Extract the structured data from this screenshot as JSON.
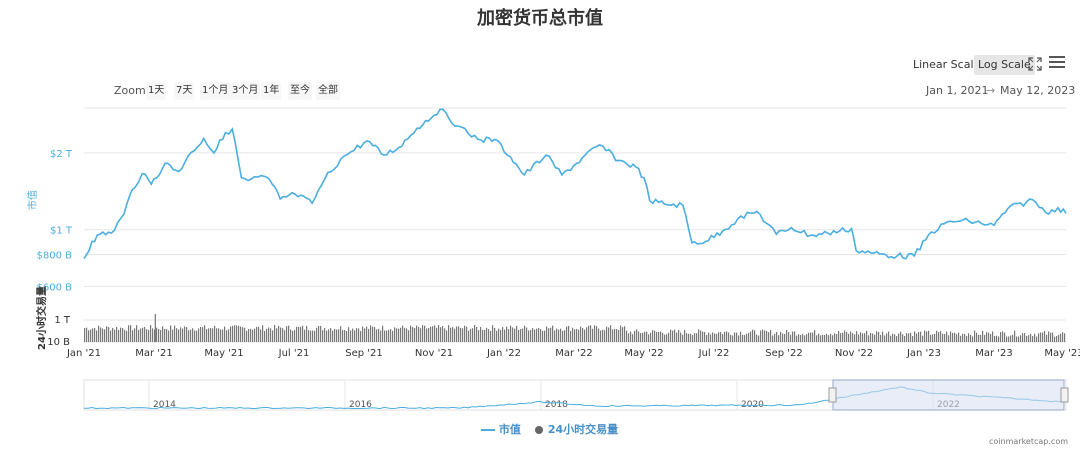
{
  "title": "加密货币总市值",
  "controls": {
    "linear_scale": "Linear Scale",
    "log_scale": "Log Scale",
    "zoom_label": "Zoom",
    "zoom_buttons": [
      "1天",
      "7天",
      "1个月",
      "3个月",
      "1年",
      "至今",
      "全部"
    ],
    "date_from": "Jan 1, 2021",
    "date_sep": "→",
    "date_to": "May 12, 2023",
    "active_scale": "Log Scale"
  },
  "legend": {
    "series_1": "市值",
    "series_2": "24小时交易量"
  },
  "credit": "coinmarketcap.com",
  "colors": {
    "line": "#4aaee0",
    "volume_bar": "#777777",
    "navigator_fill": "#d6def0",
    "grid": "#e6e6e6",
    "axis_label": "#4aaee0"
  },
  "chart_data": {
    "type": "line",
    "title": "加密货币总市值",
    "y_axis": {
      "label": "市值",
      "scale": "log",
      "ticks": [
        "$2 T",
        "$1 T",
        "$800 B",
        "$600 B"
      ],
      "tick_values": [
        2000,
        1000,
        800,
        600
      ],
      "unit": "USD billions",
      "range": [
        550,
        3000
      ]
    },
    "volume_axis": {
      "label": "24小时交易量",
      "ticks": [
        "1 T",
        "10 B"
      ]
    },
    "x_axis": {
      "ticks": [
        "Jan '21",
        "Mar '21",
        "May '21",
        "Jul '21",
        "Sep '21",
        "Nov '21",
        "Jan '22",
        "Mar '22",
        "May '22",
        "Jul '22",
        "Sep '22",
        "Nov '22",
        "Jan '23",
        "Mar '23",
        "May '23"
      ],
      "range": [
        "2021-01-01",
        "2023-05-12"
      ]
    },
    "series": [
      {
        "name": "市值",
        "dates": [
          "2021-01-01",
          "2021-01-08",
          "2021-01-15",
          "2021-01-25",
          "2021-02-05",
          "2021-02-12",
          "2021-02-21",
          "2021-03-01",
          "2021-03-13",
          "2021-03-25",
          "2021-04-05",
          "2021-04-16",
          "2021-04-25",
          "2021-05-05",
          "2021-05-11",
          "2021-05-19",
          "2021-05-25",
          "2021-06-08",
          "2021-06-15",
          "2021-06-22",
          "2021-07-05",
          "2021-07-20",
          "2021-07-31",
          "2021-08-14",
          "2021-08-23",
          "2021-09-06",
          "2021-09-21",
          "2021-10-04",
          "2021-10-20",
          "2021-11-09",
          "2021-11-25",
          "2021-12-04",
          "2021-12-15",
          "2021-12-27",
          "2022-01-10",
          "2022-01-22",
          "2022-02-10",
          "2022-02-24",
          "2022-03-29",
          "2022-04-15",
          "2022-04-30",
          "2022-05-07",
          "2022-05-12",
          "2022-05-25",
          "2022-06-10",
          "2022-06-18",
          "2022-06-30",
          "2022-07-15",
          "2022-07-28",
          "2022-08-14",
          "2022-08-31",
          "2022-09-13",
          "2022-09-30",
          "2022-10-15",
          "2022-11-05",
          "2022-11-09",
          "2022-11-22",
          "2022-12-15",
          "2022-12-30",
          "2023-01-14",
          "2023-01-31",
          "2023-02-16",
          "2023-03-10",
          "2023-03-22",
          "2023-04-13",
          "2023-04-24",
          "2023-05-05",
          "2023-05-12"
        ],
        "values": [
          770,
          900,
          960,
          970,
          1150,
          1430,
          1660,
          1510,
          1820,
          1690,
          2010,
          2280,
          2000,
          2400,
          2480,
          1600,
          1560,
          1620,
          1510,
          1320,
          1380,
          1270,
          1580,
          1890,
          2020,
          2230,
          1960,
          2100,
          2500,
          2960,
          2550,
          2380,
          2250,
          2260,
          1930,
          1640,
          1960,
          1640,
          2150,
          1870,
          1760,
          1600,
          1300,
          1260,
          1250,
          890,
          900,
          990,
          1100,
          1180,
          960,
          1020,
          950,
          970,
          1010,
          830,
          810,
          790,
          790,
          980,
          1080,
          1080,
          1040,
          1210,
          1310,
          1170,
          1220,
          1160
        ]
      },
      {
        "name": "24小时交易量",
        "note": "volume bars shown; approximate relative daily volume on log scale",
        "level": "roughly constant band with spike near early Mar 2021"
      }
    ],
    "navigator": {
      "ticks": [
        "2014",
        "2016",
        "2018",
        "2020",
        "2022"
      ],
      "selected_range": [
        "2021-01-01",
        "2023-05-12"
      ]
    },
    "grid": true,
    "legend_position": "bottom-center"
  }
}
